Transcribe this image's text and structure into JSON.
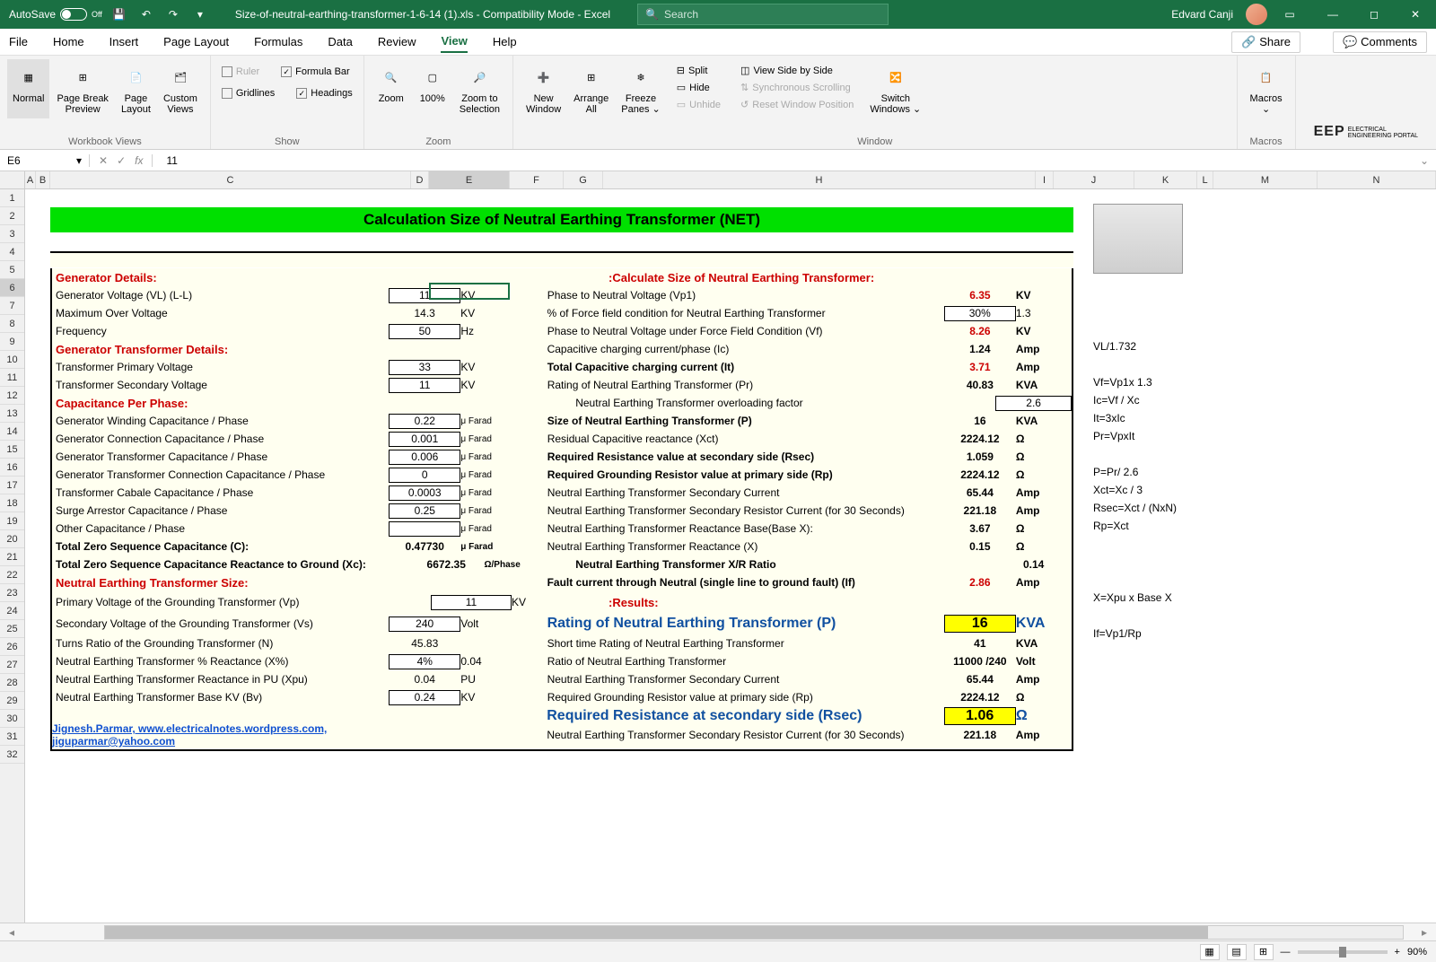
{
  "titlebar": {
    "autosave": "AutoSave",
    "autosave_state": "Off",
    "filename": "Size-of-neutral-earthing-transformer-1-6-14 (1).xls  -  Compatibility Mode  -  Excel",
    "search_placeholder": "Search",
    "user": "Edvard Canji"
  },
  "menu": {
    "file": "File",
    "home": "Home",
    "insert": "Insert",
    "page": "Page Layout",
    "formulas": "Formulas",
    "data": "Data",
    "review": "Review",
    "view": "View",
    "help": "Help",
    "share": "Share",
    "comments": "Comments"
  },
  "ribbon": {
    "views": {
      "normal": "Normal",
      "pbp": "Page Break\nPreview",
      "pl": "Page\nLayout",
      "cv": "Custom\nViews",
      "group": "Workbook Views"
    },
    "show": {
      "ruler": "Ruler",
      "fb": "Formula Bar",
      "grid": "Gridlines",
      "hd": "Headings",
      "group": "Show"
    },
    "zoom": {
      "zoom": "Zoom",
      "z100": "100%",
      "zsel": "Zoom to\nSelection",
      "group": "Zoom"
    },
    "window": {
      "nw": "New\nWindow",
      "aa": "Arrange\nAll",
      "fp": "Freeze\nPanes ⌄",
      "split": "Split",
      "hide": "Hide",
      "unhide": "Unhide",
      "vsbs": "View Side by Side",
      "ss": "Synchronous Scrolling",
      "rwp": "Reset Window Position",
      "sw": "Switch\nWindows ⌄",
      "group": "Window"
    },
    "macros": {
      "mac": "Macros\n⌄",
      "group": "Macros"
    }
  },
  "fbar": {
    "name": "E6",
    "fx": "fx",
    "val": "11"
  },
  "cols": [
    "A",
    "B",
    "C",
    "D",
    "E",
    "F",
    "G",
    "H",
    "I",
    "J",
    "K",
    "L",
    "M",
    "N"
  ],
  "title": "Calculation Size of Neutral Earthing Transformer (NET)",
  "left": {
    "gen_hdr": "Generator Details:",
    "gen_v": "Generator Voltage (VL) (L-L)",
    "gen_v_val": "11",
    "kv": "KV",
    "mov": "Maximum Over Voltage",
    "mov_val": "14.3",
    "freq": "Frequency",
    "freq_val": "50",
    "hz": "Hz",
    "gtd_hdr": "Generator Transformer Details:",
    "tpv": "Transformer Primary Voltage",
    "tpv_val": "33",
    "tsv": "Transformer Secondary Voltage",
    "tsv_val": "11",
    "cap_hdr": "Capacitance Per Phase:",
    "gwc": "Generator Winding Capacitance / Phase",
    "gwc_val": "0.22",
    "uf": "μ Farad",
    "gcc": "Generator Connection Capacitance / Phase",
    "gcc_val": "0.001",
    "gtc": "Generator Transformer Capacitance / Phase",
    "gtc_val": "0.006",
    "gtcc": "Generator Transformer Connection Capacitance / Phase",
    "gtcc_val": "0",
    "tcc": "Transformer Cabale Capacitance / Phase",
    "tcc_val": "0.0003",
    "sac": "Surge Arrestor Capacitance / Phase",
    "sac_val": "0.25",
    "oc": "Other Capacitance / Phase",
    "oc_val": "",
    "tzc": "Total Zero Sequence Capacitance (C):",
    "tzc_val": "0.47730",
    "tzc_xc": "Total Zero Sequence Capacitance Reactance to Ground (Xc):",
    "tzc_xc_val": "6672.35",
    "ohm_ph": "Ω/Phase",
    "net_hdr": "Neutral Earthing Transformer Size:",
    "pvg": "Primary Voltage of the Grounding Transformer (Vp)",
    "pvg_val": "11",
    "svg": "Secondary Voltage of the Grounding Transformer (Vs)",
    "svg_val": "240",
    "volt": "Volt",
    "trg": "Turns Ratio of the Grounding Transformer (N)",
    "trg_val": "45.83",
    "netrx": "Neutral Earthing Transformer % Reactance (X%)",
    "netrx_val": "4%",
    "netrx_u": "0.04",
    "netpu": "Neutral Earthing Transformer Reactance in PU (Xpu)",
    "netpu_val": "0.04",
    "pu": "PU",
    "netbv": "Neutral Earthing Transformer Base KV (Bv)",
    "netbv_val": "0.24",
    "link": "Jignesh.Parmar,  www.electricalnotes.wordpress.com, jiguparmar@yahoo.com"
  },
  "right": {
    "hdr": ":Calculate Size of Neutral Earthing Transformer:",
    "p2n": "Phase to Neutral Voltage (Vp1)",
    "p2n_val": "6.35",
    "kv": "KV",
    "ffc": "% of Force field condition for Neutral Earthing Transformer",
    "ffc_val": "30%",
    "ffc_u": "1.3",
    "p2nf": "Phase to Neutral Voltage under Force Field Condition (Vf)",
    "p2nf_val": "8.26",
    "ccp": "Capacitive charging current/phase (Ic)",
    "ccp_val": "1.24",
    "amp": "Amp",
    "tcc": "Total Capacitive charging current (It)",
    "tcc_val": "3.71",
    "rnet": "Rating of  Neutral Earthing Transformer (Pr)",
    "rnet_val": "40.83",
    "kva": "KVA",
    "olf": "Neutral Earthing Transformer overloading factor",
    "olf_val": "2.6",
    "size": "Size of Neutral Earthing Transformer (P)",
    "size_val": "16",
    "rcr": "Residual Capacitive reactance (Xct)",
    "rcr_val": "2224.12",
    "ohm": "Ω",
    "rrs": "Required Resistance value at secondary side (Rsec)",
    "rrs_val": "1.059",
    "rgrp": "Required Grounding Resistor value at primary side (Rp)",
    "rgrp_val": "2224.12",
    "netsc": "Neutral Earthing Transformer  Secondary Current",
    "netsc_val": "65.44",
    "netsrc": "Neutral Earthing Transformer  Secondary Resistor Current (for 30 Seconds)",
    "netsrc_val": "221.18",
    "netrb": "Neutral Earthing Transformer Reactance Base(Base X):",
    "netrb_val": "3.67",
    "netx": "Neutral Earthing Transformer Reactance (X)",
    "netx_val": "0.15",
    "xr": "Neutral Earthing Transformer X/R Ratio",
    "xr_val": "0.14",
    "fc": "Fault current through Neutral (single line to ground fault) (If)",
    "fc_val": "2.86",
    "res_hdr": ":Results:",
    "r_rating": "Rating of Neutral Earthing Transformer (P)",
    "r_rating_val": "16",
    "r_kva": "KVA",
    "r_st": "Short time Rating of  Neutral Earthing Transformer",
    "r_st_val": "41",
    "r_ratio": "Ratio of Neutral Earthing Transformer",
    "r_ratio_val": "11000 /240",
    "r_volt": "Volt",
    "r_sc": "Neutral Earthing Transformer  Secondary Current",
    "r_sc_val": "65.44",
    "r_gr": "Required Grounding Resistor value at primary side (Rp)",
    "r_gr_val": "2224.12",
    "r_rsec": "Required Resistance at secondary side (Rsec)",
    "r_rsec_val": "1.06",
    "r_src": "Neutral Earthing Transformer  Secondary Resistor Current (for 30 Seconds)",
    "r_src_val": "221.18"
  },
  "notes": {
    "n1": "VL/1.732",
    "n2": "Vf=Vp1x 1.3",
    "n3": "Ic=Vf / Xc",
    "n4": "It=3xIc",
    "n5": "Pr=VpxIt",
    "n6": "P=Pr/ 2.6",
    "n7": "Xct=Xc / 3",
    "n8": "Rsec=Xct / (NxN)",
    "n9": "Rp=Xct",
    "n10": "X=Xpu x Base X",
    "n11": "If=Vp1/Rp"
  },
  "status": {
    "zoom": "90%"
  },
  "logo": "EEP",
  "logo2": "ELECTRICAL\nENGINEERING PORTAL"
}
